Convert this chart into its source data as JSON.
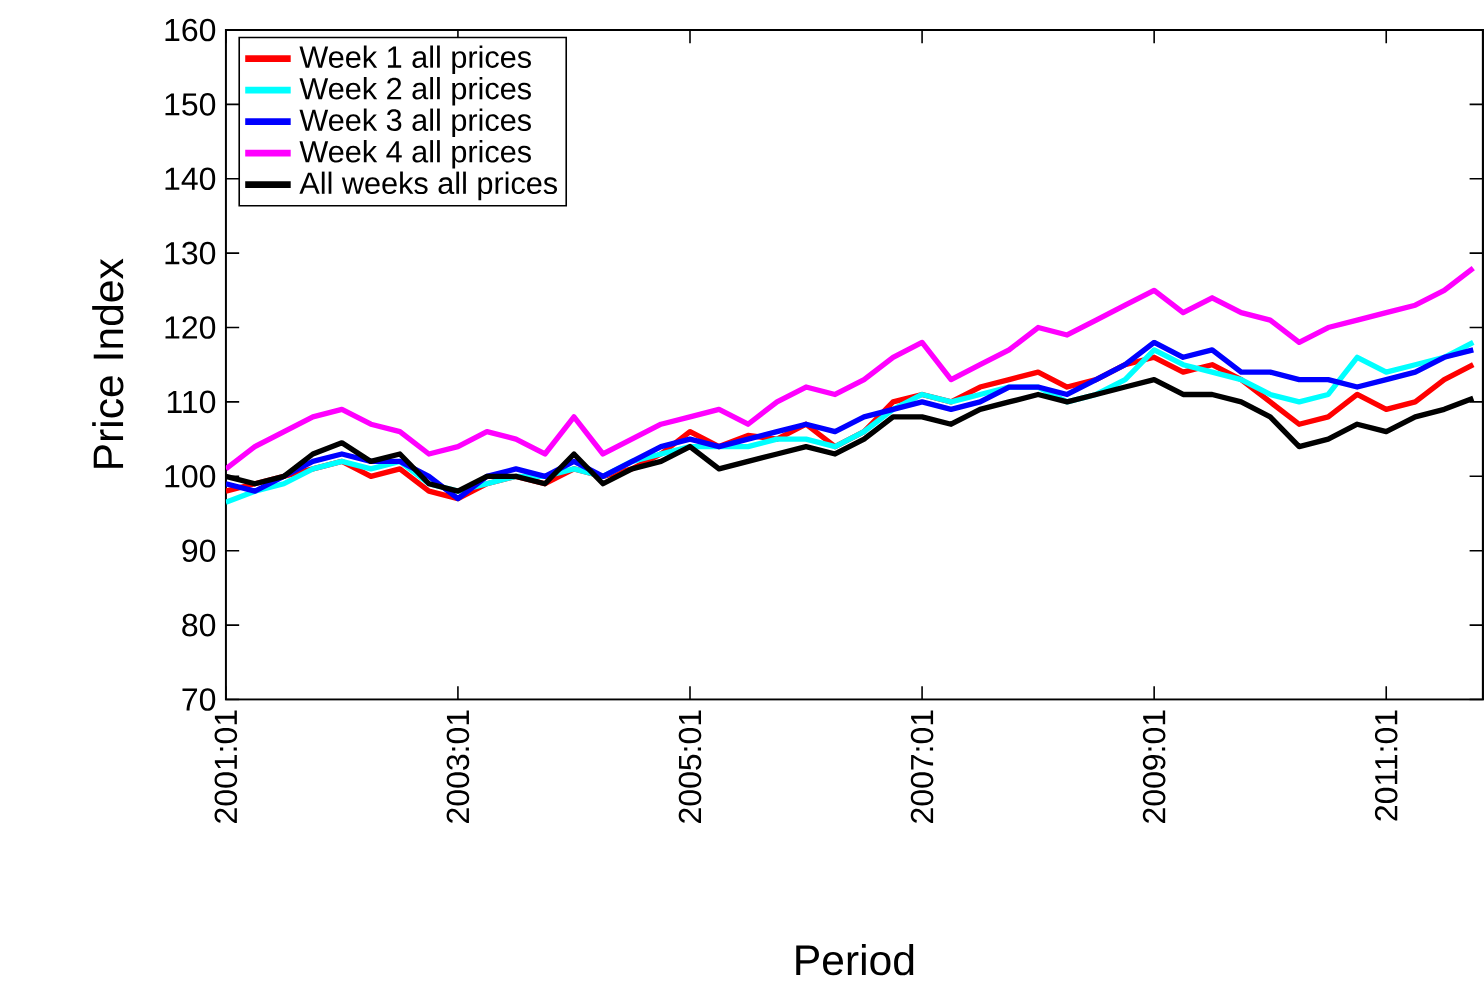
{
  "chart_data": {
    "type": "line",
    "xlabel": "Period",
    "ylabel": "Price Index",
    "x": [
      "2001-01",
      "2001-04",
      "2001-07",
      "2001-10",
      "2002-01",
      "2002-04",
      "2002-07",
      "2002-10",
      "2003-01",
      "2003-04",
      "2003-07",
      "2003-10",
      "2004-01",
      "2004-04",
      "2004-07",
      "2004-10",
      "2005-01",
      "2005-04",
      "2005-07",
      "2005-10",
      "2006-01",
      "2006-04",
      "2006-07",
      "2006-10",
      "2007-01",
      "2007-04",
      "2007-07",
      "2007-10",
      "2008-01",
      "2008-04",
      "2008-07",
      "2008-10",
      "2009-01",
      "2009-04",
      "2009-07",
      "2009-10",
      "2010-01",
      "2010-04",
      "2010-07",
      "2010-10",
      "2011-01",
      "2011-04",
      "2011-07",
      "2011-10"
    ],
    "series": [
      {
        "name": "Week 1 all prices",
        "color": "#ff0000",
        "values": [
          98,
          99,
          100,
          101,
          102,
          100,
          101,
          98,
          97,
          99,
          100,
          99,
          101,
          100,
          101,
          103,
          106,
          104,
          105.5,
          105,
          107,
          104,
          106,
          110,
          111,
          110,
          112,
          113,
          114,
          112,
          113,
          115,
          116,
          114,
          115,
          113,
          110,
          107,
          108,
          111,
          109,
          110,
          113,
          115
        ]
      },
      {
        "name": "Week 2 all prices",
        "color": "#00ffff",
        "values": [
          96.5,
          98,
          99,
          101,
          102,
          101,
          102,
          99,
          98,
          99,
          100,
          100,
          101,
          100,
          102,
          103,
          104,
          104,
          104,
          105,
          105,
          104,
          106,
          109,
          111,
          110,
          111,
          112,
          112,
          110,
          111,
          113,
          117,
          115,
          114,
          113,
          111,
          110,
          111,
          116,
          114,
          115,
          116,
          118
        ]
      },
      {
        "name": "Week 3 all prices",
        "color": "#0000ff",
        "values": [
          99,
          98,
          100,
          102,
          103,
          102,
          102,
          100,
          97,
          100,
          101,
          100,
          102,
          100,
          102,
          104,
          105,
          104,
          105,
          106,
          107,
          106,
          108,
          109,
          110,
          109,
          110,
          112,
          112,
          111,
          113,
          115,
          118,
          116,
          117,
          114,
          114,
          113,
          113,
          112,
          113,
          114,
          116,
          117
        ]
      },
      {
        "name": "Week 4 all prices",
        "color": "#ff00ff",
        "values": [
          101,
          104,
          106,
          108,
          109,
          107,
          106,
          103,
          104,
          106,
          105,
          103,
          108,
          103,
          105,
          107,
          108,
          109,
          107,
          110,
          112,
          111,
          113,
          116,
          118,
          113,
          115,
          117,
          120,
          119,
          121,
          123,
          125,
          122,
          124,
          122,
          121,
          118,
          120,
          121,
          122,
          123,
          125,
          128
        ]
      },
      {
        "name": "All weeks all prices",
        "color": "#000000",
        "values": [
          100,
          99,
          100,
          103,
          104.5,
          102,
          103,
          99,
          98,
          100,
          100,
          99,
          103,
          99,
          101,
          102,
          104,
          101,
          102,
          103,
          104,
          103,
          105,
          108,
          108,
          107,
          109,
          110,
          111,
          110,
          111,
          112,
          113,
          111,
          111,
          110,
          108,
          104,
          105,
          107,
          106,
          108,
          109,
          110.5
        ]
      }
    ],
    "xlim": [
      "2001-01",
      "2011-11"
    ],
    "xticks": [
      {
        "value": "2001-01",
        "label": "2001:01"
      },
      {
        "value": "2003-01",
        "label": "2003:01"
      },
      {
        "value": "2005-01",
        "label": "2005:01"
      },
      {
        "value": "2007-01",
        "label": "2007:01"
      },
      {
        "value": "2009-01",
        "label": "2009:01"
      },
      {
        "value": "2011-01",
        "label": "2011:01"
      }
    ],
    "ylim": [
      70,
      160
    ],
    "yticks": [
      70,
      80,
      90,
      100,
      110,
      120,
      130,
      140,
      150,
      160
    ],
    "grid": false,
    "legend": "top left",
    "marker": "none",
    "line_style": "solid"
  }
}
